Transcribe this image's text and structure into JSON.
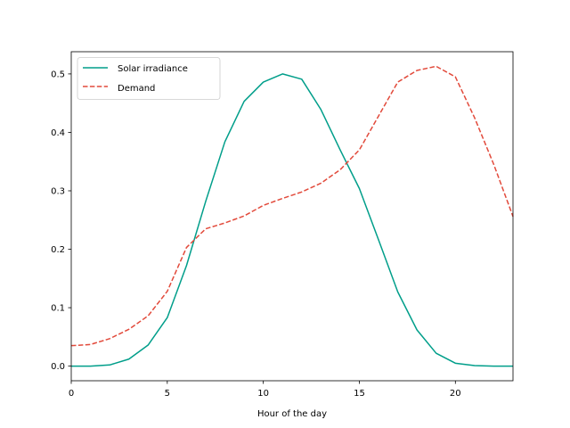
{
  "chart_data": {
    "type": "line",
    "title": "",
    "xlabel": "Hour of the day",
    "ylabel": "",
    "xlim": [
      0,
      23
    ],
    "ylim": [
      -0.025,
      0.538
    ],
    "x_ticks": [
      0,
      5,
      10,
      15,
      20
    ],
    "y_ticks": [
      0.0,
      0.1,
      0.2,
      0.3,
      0.4,
      0.5
    ],
    "x_tick_labels": [
      "0",
      "5",
      "10",
      "15",
      "20"
    ],
    "y_tick_labels": [
      "0.0",
      "0.1",
      "0.2",
      "0.3",
      "0.4",
      "0.5"
    ],
    "grid": false,
    "legend_position": "upper-left",
    "x": [
      0,
      1,
      2,
      3,
      4,
      5,
      6,
      7,
      8,
      9,
      10,
      11,
      12,
      13,
      14,
      15,
      16,
      17,
      18,
      19,
      20,
      21,
      22,
      23
    ],
    "series": [
      {
        "name": "Solar irradiance",
        "color": "#009e8a",
        "style": "solid",
        "values": [
          0.0,
          0.0,
          0.002,
          0.012,
          0.036,
          0.083,
          0.172,
          0.282,
          0.384,
          0.453,
          0.486,
          0.5,
          0.491,
          0.439,
          0.37,
          0.304,
          0.216,
          0.127,
          0.062,
          0.022,
          0.005,
          0.001,
          0.0,
          0.0
        ]
      },
      {
        "name": "Demand",
        "color": "#e24a3b",
        "style": "dashed",
        "values": [
          0.035,
          0.037,
          0.047,
          0.063,
          0.086,
          0.128,
          0.203,
          0.235,
          0.245,
          0.257,
          0.275,
          0.287,
          0.298,
          0.313,
          0.336,
          0.37,
          0.428,
          0.486,
          0.506,
          0.513,
          0.495,
          0.425,
          0.345,
          0.256
        ]
      }
    ]
  }
}
